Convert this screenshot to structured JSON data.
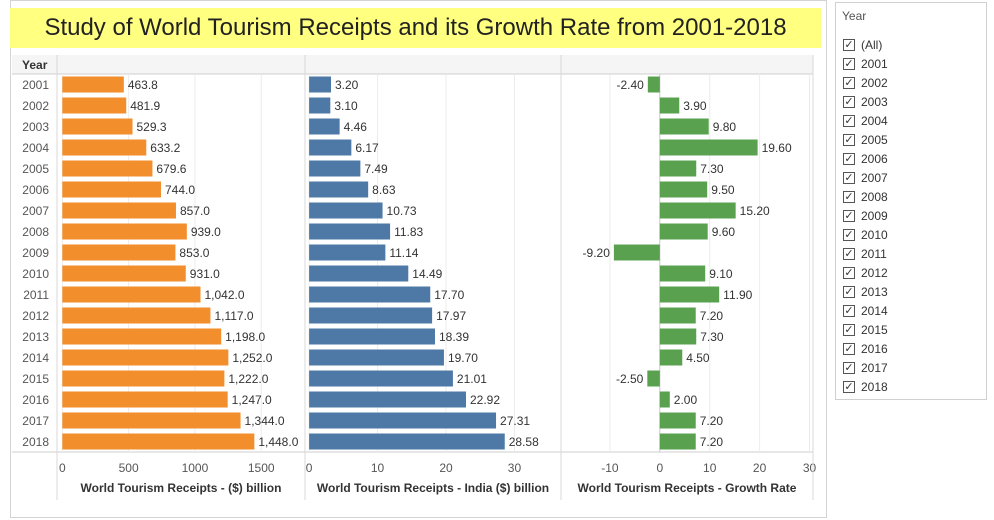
{
  "title": "Study of World Tourism Receipts and its Growth Rate from 2001-2018",
  "row_header": "Year",
  "chart_data": {
    "type": "bar",
    "orientation": "horizontal",
    "categories": [
      "2001",
      "2002",
      "2003",
      "2004",
      "2005",
      "2006",
      "2007",
      "2008",
      "2009",
      "2010",
      "2011",
      "2012",
      "2013",
      "2014",
      "2015",
      "2016",
      "2017",
      "2018"
    ],
    "panels": [
      {
        "name": "World Tourism Receipts - ($) billion",
        "color": "#f28e2b",
        "values": [
          463.8,
          481.9,
          529.3,
          633.2,
          679.6,
          744.0,
          857.0,
          939.0,
          853.0,
          931.0,
          1042.0,
          1117.0,
          1198.0,
          1252.0,
          1222.0,
          1247.0,
          1344.0,
          1448.0
        ],
        "labels": [
          "463.8",
          "481.9",
          "529.3",
          "633.2",
          "679.6",
          "744.0",
          "857.0",
          "939.0",
          "853.0",
          "931.0",
          "1,042.0",
          "1,117.0",
          "1,198.0",
          "1,252.0",
          "1,222.0",
          "1,247.0",
          "1,344.0",
          "1,448.0"
        ],
        "xlim": [
          -40,
          1830
        ],
        "ticks": [
          0,
          500,
          1000,
          1500
        ],
        "tick_labels": [
          "0",
          "500",
          "1000",
          "1500"
        ],
        "grid": true
      },
      {
        "name": "World Tourism Receipts - India ($) billion",
        "color": "#4e79a7",
        "values": [
          3.2,
          3.1,
          4.46,
          6.17,
          7.49,
          8.63,
          10.73,
          11.83,
          11.14,
          14.49,
          17.7,
          17.97,
          18.39,
          19.7,
          21.01,
          22.92,
          27.31,
          28.58
        ],
        "labels": [
          "3.20",
          "3.10",
          "4.46",
          "6.17",
          "7.49",
          "8.63",
          "10.73",
          "11.83",
          "11.14",
          "14.49",
          "17.70",
          "17.97",
          "18.39",
          "19.70",
          "21.01",
          "22.92",
          "27.31",
          "28.58"
        ],
        "xlim": [
          -0.6,
          36.8
        ],
        "ticks": [
          0,
          10,
          20,
          30
        ],
        "tick_labels": [
          "0",
          "10",
          "20",
          "30"
        ],
        "grid": true
      },
      {
        "name": "World Tourism Receipts - Growth Rate",
        "color": "#59a14f",
        "values": [
          -2.4,
          3.9,
          9.8,
          19.6,
          7.3,
          9.5,
          15.2,
          9.6,
          -9.2,
          9.1,
          11.9,
          7.2,
          7.3,
          4.5,
          -2.5,
          2.0,
          7.2,
          7.2
        ],
        "labels": [
          "-2.40",
          "3.90",
          "9.80",
          "19.60",
          "7.30",
          "9.50",
          "15.20",
          "9.60",
          "-9.20",
          "9.10",
          "11.90",
          "7.20",
          "7.30",
          "4.50",
          "-2.50",
          "2.00",
          "7.20",
          "7.20"
        ],
        "xlim": [
          -19.8,
          30.7
        ],
        "ticks": [
          -10,
          0,
          10,
          20,
          30
        ],
        "tick_labels": [
          "-10",
          "0",
          "10",
          "20",
          "30"
        ],
        "grid": true,
        "zero_line": true
      }
    ]
  },
  "legend": {
    "title": "Year",
    "items": [
      {
        "label": "(All)",
        "checked": true
      },
      {
        "label": "2001",
        "checked": true
      },
      {
        "label": "2002",
        "checked": true
      },
      {
        "label": "2003",
        "checked": true
      },
      {
        "label": "2004",
        "checked": true
      },
      {
        "label": "2005",
        "checked": true
      },
      {
        "label": "2006",
        "checked": true
      },
      {
        "label": "2007",
        "checked": true
      },
      {
        "label": "2008",
        "checked": true
      },
      {
        "label": "2009",
        "checked": true
      },
      {
        "label": "2010",
        "checked": true
      },
      {
        "label": "2011",
        "checked": true
      },
      {
        "label": "2012",
        "checked": true
      },
      {
        "label": "2013",
        "checked": true
      },
      {
        "label": "2014",
        "checked": true
      },
      {
        "label": "2015",
        "checked": true
      },
      {
        "label": "2016",
        "checked": true
      },
      {
        "label": "2017",
        "checked": true
      },
      {
        "label": "2018",
        "checked": true
      }
    ]
  }
}
